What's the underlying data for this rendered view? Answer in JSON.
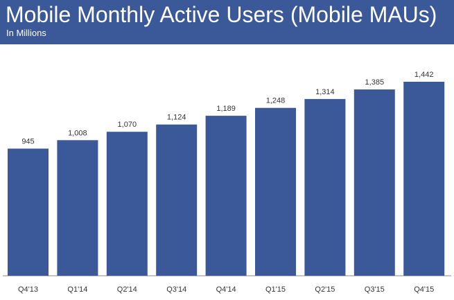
{
  "header": {
    "title": "Mobile Monthly Active Users (Mobile MAUs)",
    "subtitle": "In Millions"
  },
  "colors": {
    "header_bg": "#3b5998",
    "bar": "#3b5998"
  },
  "chart_data": {
    "type": "bar",
    "title": "Mobile Monthly Active Users (Mobile MAUs)",
    "subtitle": "In Millions",
    "xlabel": "",
    "ylabel": "",
    "categories": [
      "Q4'13",
      "Q1'14",
      "Q2'14",
      "Q3'14",
      "Q4'14",
      "Q1'15",
      "Q2'15",
      "Q3'15",
      "Q4'15"
    ],
    "values": [
      945,
      1008,
      1070,
      1124,
      1189,
      1248,
      1314,
      1385,
      1442
    ],
    "value_labels": [
      "945",
      "1,008",
      "1,070",
      "1,124",
      "1,189",
      "1,248",
      "1,314",
      "1,385",
      "1,442"
    ],
    "ylim": [
      0,
      1442
    ],
    "grid": false,
    "legend": "none"
  }
}
